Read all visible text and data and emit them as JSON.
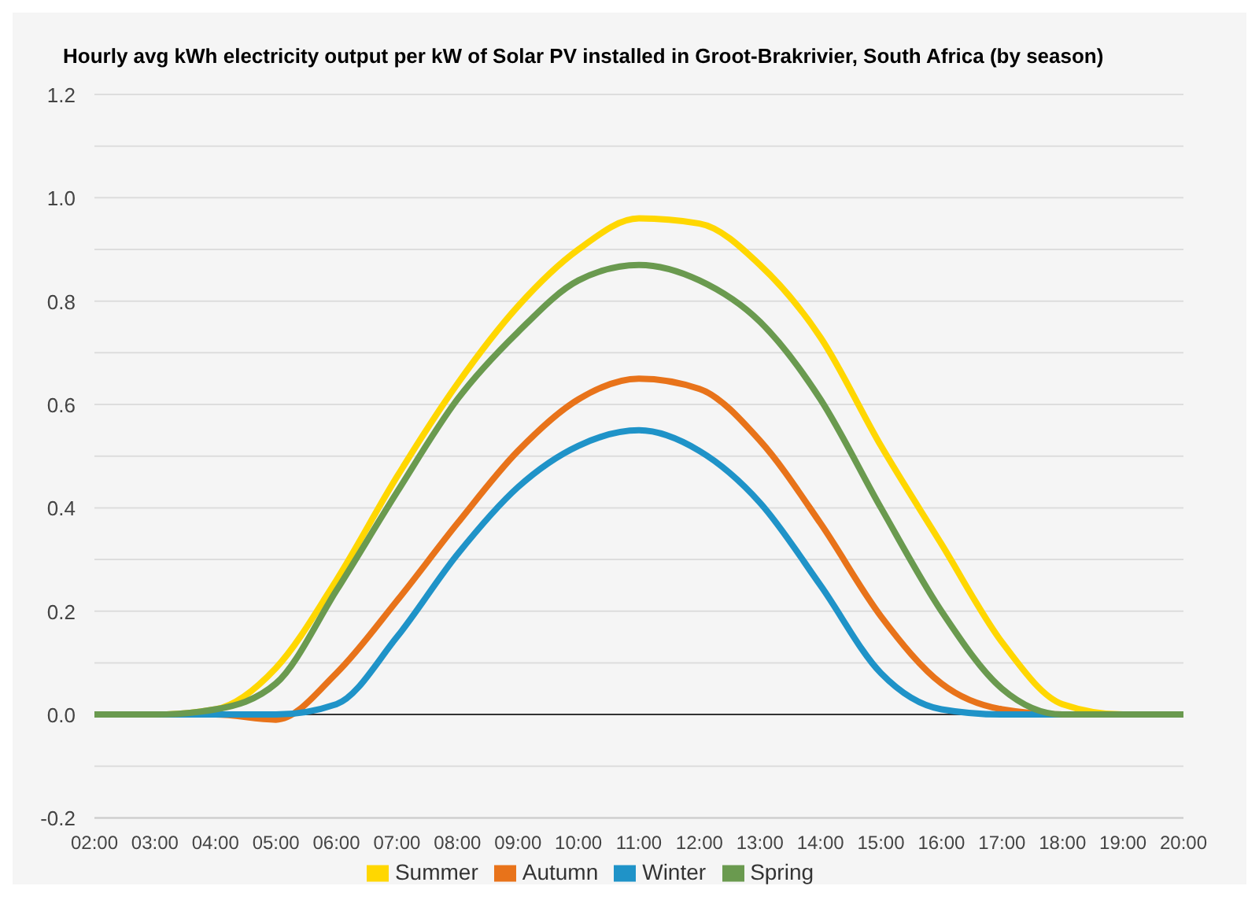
{
  "chart_data": {
    "type": "line",
    "title": "Hourly avg kWh electricity output per kW of Solar PV installed in Groot-Brakrivier, South Africa (by season)",
    "x": [
      2,
      3,
      4,
      5,
      6,
      7,
      8,
      9,
      10,
      11,
      12,
      13,
      14,
      15,
      16,
      17,
      18,
      19,
      20
    ],
    "xlim": [
      2,
      20
    ],
    "xticks": [
      {
        "value": 2,
        "label": "02:00"
      },
      {
        "value": 3,
        "label": "03:00"
      },
      {
        "value": 4,
        "label": "04:00"
      },
      {
        "value": 5,
        "label": "05:00"
      },
      {
        "value": 6,
        "label": "06:00"
      },
      {
        "value": 7,
        "label": "07:00"
      },
      {
        "value": 8,
        "label": "08:00"
      },
      {
        "value": 9,
        "label": "09:00"
      },
      {
        "value": 10,
        "label": "10:00"
      },
      {
        "value": 11,
        "label": "11:00"
      },
      {
        "value": 12,
        "label": "12:00"
      },
      {
        "value": 13,
        "label": "13:00"
      },
      {
        "value": 14,
        "label": "14:00"
      },
      {
        "value": 15,
        "label": "15:00"
      },
      {
        "value": 16,
        "label": "16:00"
      },
      {
        "value": 17,
        "label": "17:00"
      },
      {
        "value": 18,
        "label": "18:00"
      },
      {
        "value": 19,
        "label": "19:00"
      },
      {
        "value": 20,
        "label": "20:00"
      }
    ],
    "ylim": [
      -0.2,
      1.2
    ],
    "yticks": [
      {
        "value": -0.2,
        "label": "-0.2"
      },
      {
        "value": -0.1,
        "label": null
      },
      {
        "value": 0,
        "label": "0.0"
      },
      {
        "value": 0.1,
        "label": null
      },
      {
        "value": 0.2,
        "label": "0.2"
      },
      {
        "value": 0.3,
        "label": null
      },
      {
        "value": 0.4,
        "label": "0.4"
      },
      {
        "value": 0.5,
        "label": null
      },
      {
        "value": 0.6,
        "label": "0.6"
      },
      {
        "value": 0.7,
        "label": null
      },
      {
        "value": 0.8,
        "label": "0.8"
      },
      {
        "value": 0.9,
        "label": null
      },
      {
        "value": 1.0,
        "label": "1.0"
      },
      {
        "value": 1.1,
        "label": null
      },
      {
        "value": 1.2,
        "label": "1.2"
      }
    ],
    "grid": "y",
    "legend": "bottom",
    "marker": "none",
    "line_style": "solid",
    "ref_lines": [
      {
        "axis": "y",
        "value": 0,
        "label": null,
        "color": "#333333"
      }
    ],
    "series": [
      {
        "name": "Summer",
        "color": "#ffd700",
        "values": [
          0,
          0,
          0.01,
          0.09,
          0.26,
          0.46,
          0.64,
          0.79,
          0.9,
          0.96,
          0.95,
          0.87,
          0.73,
          0.52,
          0.33,
          0.14,
          0.02,
          0,
          0
        ]
      },
      {
        "name": "Autumn",
        "color": "#e8731a",
        "values": [
          0,
          0,
          0,
          -0.01,
          0.08,
          0.22,
          0.37,
          0.51,
          0.61,
          0.65,
          0.63,
          0.53,
          0.37,
          0.19,
          0.06,
          0.01,
          0,
          0,
          0
        ]
      },
      {
        "name": "Winter",
        "color": "#1f93c8",
        "values": [
          0,
          0,
          0,
          0,
          0.02,
          0.15,
          0.31,
          0.44,
          0.52,
          0.55,
          0.51,
          0.41,
          0.25,
          0.08,
          0.01,
          0,
          0,
          0,
          0
        ]
      },
      {
        "name": "Spring",
        "color": "#6a9a4f",
        "values": [
          0,
          0,
          0.01,
          0.06,
          0.24,
          0.43,
          0.61,
          0.74,
          0.84,
          0.87,
          0.84,
          0.76,
          0.61,
          0.4,
          0.2,
          0.05,
          0,
          0,
          0
        ]
      }
    ]
  }
}
